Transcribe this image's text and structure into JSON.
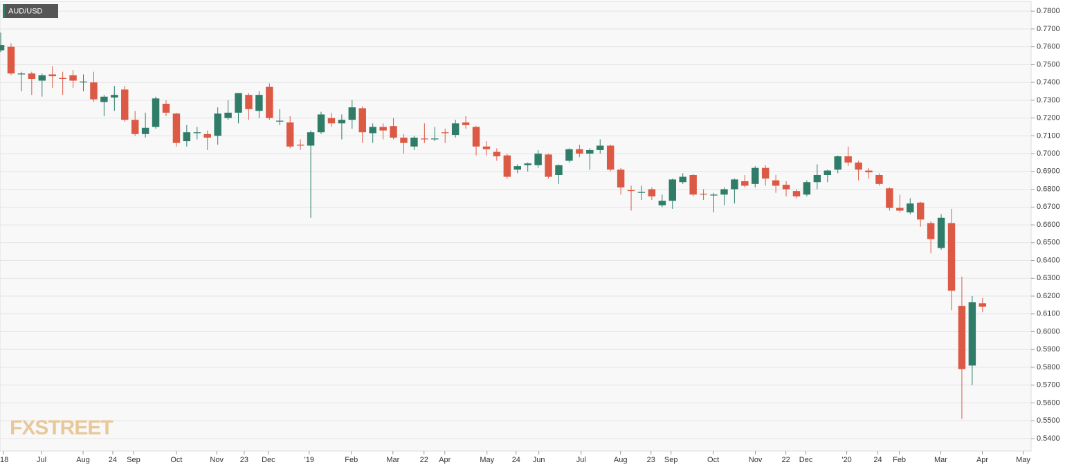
{
  "chart_data": {
    "type": "candlestick",
    "title": "AUD/USD",
    "watermark": "FXSTREET",
    "up_color": "#2f7d69",
    "down_color": "#dc5a45",
    "grid": true,
    "ylim": [
      0.533,
      0.7855
    ],
    "yticks": [
      {
        "value": 0.54,
        "label": "0.5400"
      },
      {
        "value": 0.55,
        "label": "0.5500"
      },
      {
        "value": 0.56,
        "label": "0.5600"
      },
      {
        "value": 0.57,
        "label": "0.5700"
      },
      {
        "value": 0.58,
        "label": "0.5800"
      },
      {
        "value": 0.59,
        "label": "0.5900"
      },
      {
        "value": 0.6,
        "label": "0.6000"
      },
      {
        "value": 0.61,
        "label": "0.6100"
      },
      {
        "value": 0.62,
        "label": "0.6200"
      },
      {
        "value": 0.63,
        "label": "0.6300"
      },
      {
        "value": 0.64,
        "label": "0.6400"
      },
      {
        "value": 0.65,
        "label": "0.6500"
      },
      {
        "value": 0.66,
        "label": "0.6600"
      },
      {
        "value": 0.67,
        "label": "0.6700"
      },
      {
        "value": 0.68,
        "label": "0.6800"
      },
      {
        "value": 0.69,
        "label": "0.6900"
      },
      {
        "value": 0.7,
        "label": "0.7000"
      },
      {
        "value": 0.71,
        "label": "0.7100"
      },
      {
        "value": 0.72,
        "label": "0.7200"
      },
      {
        "value": 0.73,
        "label": "0.7300"
      },
      {
        "value": 0.74,
        "label": "0.7400"
      },
      {
        "value": 0.75,
        "label": "0.7500"
      },
      {
        "value": 0.76,
        "label": "0.7600"
      },
      {
        "value": 0.77,
        "label": "0.7700"
      },
      {
        "value": 0.78,
        "label": "0.7800"
      }
    ],
    "xlim": [
      -0.07,
      99.7
    ],
    "xticks": [
      {
        "value": 0.27,
        "label": "'18"
      },
      {
        "value": 3.95,
        "label": "Jul"
      },
      {
        "value": 7.97,
        "label": "Aug"
      },
      {
        "value": 10.84,
        "label": "24"
      },
      {
        "value": 12.85,
        "label": "Sep"
      },
      {
        "value": 17.0,
        "label": "Oct"
      },
      {
        "value": 20.9,
        "label": "Nov"
      },
      {
        "value": 23.56,
        "label": "23"
      },
      {
        "value": 25.9,
        "label": "Dec"
      },
      {
        "value": 29.85,
        "label": "'19"
      },
      {
        "value": 33.93,
        "label": "Feb"
      },
      {
        "value": 37.95,
        "label": "Mar"
      },
      {
        "value": 40.96,
        "label": "22"
      },
      {
        "value": 42.97,
        "label": "Apr"
      },
      {
        "value": 47.05,
        "label": "May"
      },
      {
        "value": 49.87,
        "label": "24"
      },
      {
        "value": 52.07,
        "label": "Jun"
      },
      {
        "value": 56.16,
        "label": "Jul"
      },
      {
        "value": 59.97,
        "label": "Aug"
      },
      {
        "value": 62.92,
        "label": "23"
      },
      {
        "value": 64.86,
        "label": "Sep"
      },
      {
        "value": 68.94,
        "label": "Oct"
      },
      {
        "value": 73.02,
        "label": "Nov"
      },
      {
        "value": 75.97,
        "label": "22"
      },
      {
        "value": 77.91,
        "label": "Dec"
      },
      {
        "value": 81.86,
        "label": "'20"
      },
      {
        "value": 84.87,
        "label": "24"
      },
      {
        "value": 86.95,
        "label": "Feb"
      },
      {
        "value": 90.96,
        "label": "Mar"
      },
      {
        "value": 94.98,
        "label": "Apr"
      },
      {
        "value": 98.93,
        "label": "May"
      }
    ],
    "open": [
      0.758,
      0.76,
      0.7445,
      0.745,
      0.741,
      0.7445,
      0.7425,
      0.744,
      0.74,
      0.74,
      0.729,
      0.7315,
      0.736,
      0.719,
      0.711,
      0.715,
      0.728,
      0.7225,
      0.707,
      0.7115,
      0.711,
      0.71,
      0.72,
      0.723,
      0.733,
      0.724,
      0.7375,
      0.718,
      0.7175,
      0.705,
      0.7045,
      0.712,
      0.72,
      0.717,
      0.719,
      0.7255,
      0.7115,
      0.715,
      0.7155,
      0.709,
      0.704,
      0.7085,
      0.708,
      0.712,
      0.7105,
      0.7175,
      0.715,
      0.704,
      0.701,
      0.699,
      0.691,
      0.6935,
      0.6935,
      0.6995,
      0.688,
      0.696,
      0.7025,
      0.7,
      0.702,
      0.7045,
      0.691,
      0.6795,
      0.678,
      0.68,
      0.671,
      0.6735,
      0.684,
      0.688,
      0.6775,
      0.6765,
      0.677,
      0.68,
      0.6845,
      0.683,
      0.692,
      0.685,
      0.6825,
      0.679,
      0.677,
      0.684,
      0.688,
      0.691,
      0.6985,
      0.695,
      0.6905,
      0.688,
      0.6805,
      0.6695,
      0.667,
      0.6725,
      0.661,
      0.647,
      0.661,
      0.6145,
      0.581,
      0.616
    ],
    "high": [
      0.768,
      0.762,
      0.746,
      0.746,
      0.745,
      0.749,
      0.746,
      0.747,
      0.7445,
      0.746,
      0.733,
      0.738,
      0.738,
      0.724,
      0.723,
      0.732,
      0.73,
      0.723,
      0.716,
      0.715,
      0.713,
      0.726,
      0.73,
      0.734,
      0.734,
      0.735,
      0.7395,
      0.725,
      0.721,
      0.708,
      0.713,
      0.7235,
      0.723,
      0.722,
      0.73,
      0.7265,
      0.717,
      0.717,
      0.72,
      0.711,
      0.71,
      0.717,
      0.715,
      0.714,
      0.719,
      0.721,
      0.7155,
      0.707,
      0.703,
      0.7,
      0.694,
      0.695,
      0.702,
      0.7,
      0.694,
      0.703,
      0.705,
      0.703,
      0.708,
      0.705,
      0.692,
      0.682,
      0.682,
      0.681,
      0.677,
      0.686,
      0.689,
      0.6885,
      0.68,
      0.678,
      0.681,
      0.686,
      0.688,
      0.693,
      0.6935,
      0.688,
      0.6845,
      0.68,
      0.685,
      0.694,
      0.691,
      0.699,
      0.704,
      0.696,
      0.692,
      0.689,
      0.681,
      0.677,
      0.675,
      0.673,
      0.662,
      0.666,
      0.669,
      0.631,
      0.62,
      0.619
    ],
    "low": [
      0.757,
      0.744,
      0.735,
      0.733,
      0.732,
      0.737,
      0.733,
      0.737,
      0.735,
      0.729,
      0.721,
      0.724,
      0.718,
      0.71,
      0.709,
      0.714,
      0.721,
      0.704,
      0.704,
      0.708,
      0.702,
      0.705,
      0.719,
      0.717,
      0.719,
      0.72,
      0.719,
      0.716,
      0.703,
      0.702,
      0.664,
      0.711,
      0.715,
      0.708,
      0.714,
      0.706,
      0.706,
      0.708,
      0.708,
      0.7,
      0.702,
      0.706,
      0.707,
      0.706,
      0.709,
      0.714,
      0.699,
      0.699,
      0.696,
      0.686,
      0.689,
      0.69,
      0.692,
      0.686,
      0.683,
      0.695,
      0.698,
      0.691,
      0.7,
      0.69,
      0.677,
      0.668,
      0.674,
      0.674,
      0.67,
      0.669,
      0.683,
      0.676,
      0.674,
      0.667,
      0.671,
      0.672,
      0.681,
      0.681,
      0.682,
      0.678,
      0.676,
      0.675,
      0.676,
      0.68,
      0.684,
      0.689,
      0.693,
      0.685,
      0.686,
      0.682,
      0.668,
      0.667,
      0.666,
      0.659,
      0.644,
      0.646,
      0.612,
      0.551,
      0.57,
      0.611
    ],
    "close": [
      0.761,
      0.745,
      0.745,
      0.742,
      0.744,
      0.7435,
      0.742,
      0.741,
      0.7405,
      0.7305,
      0.732,
      0.733,
      0.719,
      0.711,
      0.7145,
      0.731,
      0.723,
      0.706,
      0.712,
      0.712,
      0.709,
      0.7225,
      0.723,
      0.734,
      0.725,
      0.733,
      0.72,
      0.7185,
      0.704,
      0.7045,
      0.712,
      0.722,
      0.717,
      0.719,
      0.726,
      0.712,
      0.715,
      0.713,
      0.709,
      0.706,
      0.709,
      0.708,
      0.7085,
      0.7115,
      0.717,
      0.716,
      0.704,
      0.7025,
      0.6985,
      0.687,
      0.693,
      0.6945,
      0.7,
      0.687,
      0.6935,
      0.7025,
      0.7,
      0.702,
      0.7045,
      0.691,
      0.681,
      0.679,
      0.6785,
      0.676,
      0.6735,
      0.6855,
      0.687,
      0.677,
      0.677,
      0.677,
      0.68,
      0.6855,
      0.682,
      0.692,
      0.686,
      0.682,
      0.68,
      0.676,
      0.684,
      0.688,
      0.6905,
      0.6985,
      0.695,
      0.691,
      0.6895,
      0.683,
      0.6695,
      0.668,
      0.672,
      0.663,
      0.652,
      0.664,
      0.623,
      0.579,
      0.6165,
      0.614
    ]
  }
}
